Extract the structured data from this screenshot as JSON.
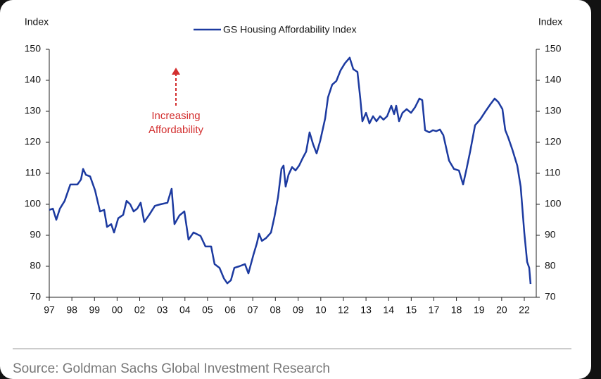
{
  "chart_data": {
    "type": "line",
    "legend": "GS Housing Affordability Index",
    "y_label": "Index",
    "y2_label": "Index",
    "annotation": [
      "Increasing",
      "Affordability"
    ],
    "x": [
      1997.0,
      1997.19,
      1997.37,
      1997.56,
      1997.81,
      1998.11,
      1998.48,
      1998.67,
      1998.78,
      1998.93,
      1999.15,
      1999.41,
      1999.67,
      1999.89,
      2000.04,
      2000.26,
      2000.41,
      2000.63,
      2000.89,
      2001.07,
      2001.26,
      2001.44,
      2001.63,
      2001.81,
      2002.0,
      2002.26,
      2002.56,
      2002.85,
      2003.22,
      2003.44,
      2003.59,
      2003.85,
      2004.11,
      2004.33,
      2004.59,
      2004.96,
      2005.22,
      2005.52,
      2005.7,
      2005.96,
      2006.19,
      2006.37,
      2006.56,
      2006.74,
      2007.0,
      2007.3,
      2007.48,
      2007.74,
      2007.93,
      2008.04,
      2008.19,
      2008.41,
      2008.67,
      2008.85,
      2009.04,
      2009.22,
      2009.33,
      2009.44,
      2009.59,
      2009.78,
      2009.96,
      2010.15,
      2010.33,
      2010.52,
      2010.7,
      2010.89,
      2011.07,
      2011.26,
      2011.52,
      2011.67,
      2011.89,
      2012.11,
      2012.33,
      2012.56,
      2012.81,
      2013.0,
      2013.22,
      2013.37,
      2013.48,
      2013.67,
      2013.85,
      2014.04,
      2014.22,
      2014.41,
      2014.59,
      2014.78,
      2015.0,
      2015.15,
      2015.26,
      2015.41,
      2015.59,
      2015.81,
      2016.04,
      2016.26,
      2016.48,
      2016.63,
      2016.78,
      2017.0,
      2017.19,
      2017.37,
      2017.56,
      2017.74,
      2017.89,
      2018.04,
      2018.3,
      2018.56,
      2018.78,
      2018.96,
      2019.15,
      2019.41,
      2019.67,
      2019.96,
      2020.22,
      2020.44,
      2020.63,
      2020.85,
      2021.0,
      2021.15,
      2021.37,
      2021.63,
      2021.81,
      2022.0,
      2022.15,
      2022.26,
      2022.33
    ],
    "series": [
      {
        "name": "GS Housing Affordability Index",
        "color": "#1c3aa0",
        "values": [
          98.2,
          98.6,
          95,
          98.6,
          101.1,
          106.4,
          106.4,
          108,
          111.4,
          109.5,
          109,
          104.5,
          97.7,
          98.2,
          92.7,
          93.6,
          90.9,
          95.5,
          96.6,
          101.1,
          100,
          97.7,
          98.6,
          100.5,
          94.3,
          96.6,
          99.5,
          100,
          100.5,
          105,
          93.6,
          96.4,
          97.7,
          88.6,
          90.9,
          89.8,
          86.4,
          86.4,
          80.7,
          79.5,
          76.1,
          74.5,
          75.5,
          79.5,
          80,
          80.7,
          77.7,
          83.6,
          87.5,
          90.5,
          88.2,
          89.1,
          90.9,
          95.9,
          102.3,
          111.4,
          112.5,
          105.7,
          109.5,
          112,
          110.9,
          112.5,
          114.8,
          117,
          123.2,
          119.3,
          116.4,
          120.5,
          127.7,
          134.5,
          138.6,
          139.8,
          143.2,
          145.5,
          147.3,
          143.6,
          142.7,
          134.1,
          126.8,
          129.5,
          126.1,
          128.4,
          126.8,
          128.4,
          127.3,
          128.4,
          131.8,
          129.1,
          131.8,
          126.8,
          129.5,
          130.7,
          129.5,
          131.4,
          134.1,
          133.6,
          123.9,
          123.2,
          123.9,
          123.6,
          124.1,
          122.3,
          118.2,
          114.1,
          111.4,
          110.9,
          106.4,
          111.4,
          117,
          125.5,
          127.3,
          130,
          132.3,
          134.1,
          133,
          130.7,
          123.9,
          121.6,
          117.7,
          112.5,
          105.7,
          90.9,
          81.4,
          79.5,
          74.3
        ]
      }
    ],
    "xlim": [
      1997,
      2022.63
    ],
    "xticks": [
      {
        "value": 1997,
        "label": "97"
      },
      {
        "value": 1998.19,
        "label": "98"
      },
      {
        "value": 1999.38,
        "label": "99"
      },
      {
        "value": 2000.57,
        "label": "00"
      },
      {
        "value": 2001.76,
        "label": "02"
      },
      {
        "value": 2002.95,
        "label": "03"
      },
      {
        "value": 2004.14,
        "label": "04"
      },
      {
        "value": 2005.33,
        "label": "05"
      },
      {
        "value": 2006.52,
        "label": "06"
      },
      {
        "value": 2007.71,
        "label": "07"
      },
      {
        "value": 2008.9,
        "label": "08"
      },
      {
        "value": 2010.1,
        "label": "09"
      },
      {
        "value": 2011.29,
        "label": "10"
      },
      {
        "value": 2012.48,
        "label": "12"
      },
      {
        "value": 2013.67,
        "label": "13"
      },
      {
        "value": 2014.86,
        "label": "14"
      },
      {
        "value": 2016.05,
        "label": "15"
      },
      {
        "value": 2017.24,
        "label": "17"
      },
      {
        "value": 2018.43,
        "label": "18"
      },
      {
        "value": 2019.62,
        "label": "19"
      },
      {
        "value": 2020.81,
        "label": "20"
      },
      {
        "value": 2022,
        "label": "22"
      }
    ],
    "ylim": [
      70,
      150
    ],
    "yticks": [
      70,
      80,
      90,
      100,
      110,
      120,
      130,
      140,
      150
    ],
    "y2lim": [
      70,
      150
    ],
    "y2ticks": [
      70,
      80,
      90,
      100,
      110,
      120,
      130,
      140,
      150
    ]
  },
  "source": "Source: Goldman Sachs Global Investment Research"
}
